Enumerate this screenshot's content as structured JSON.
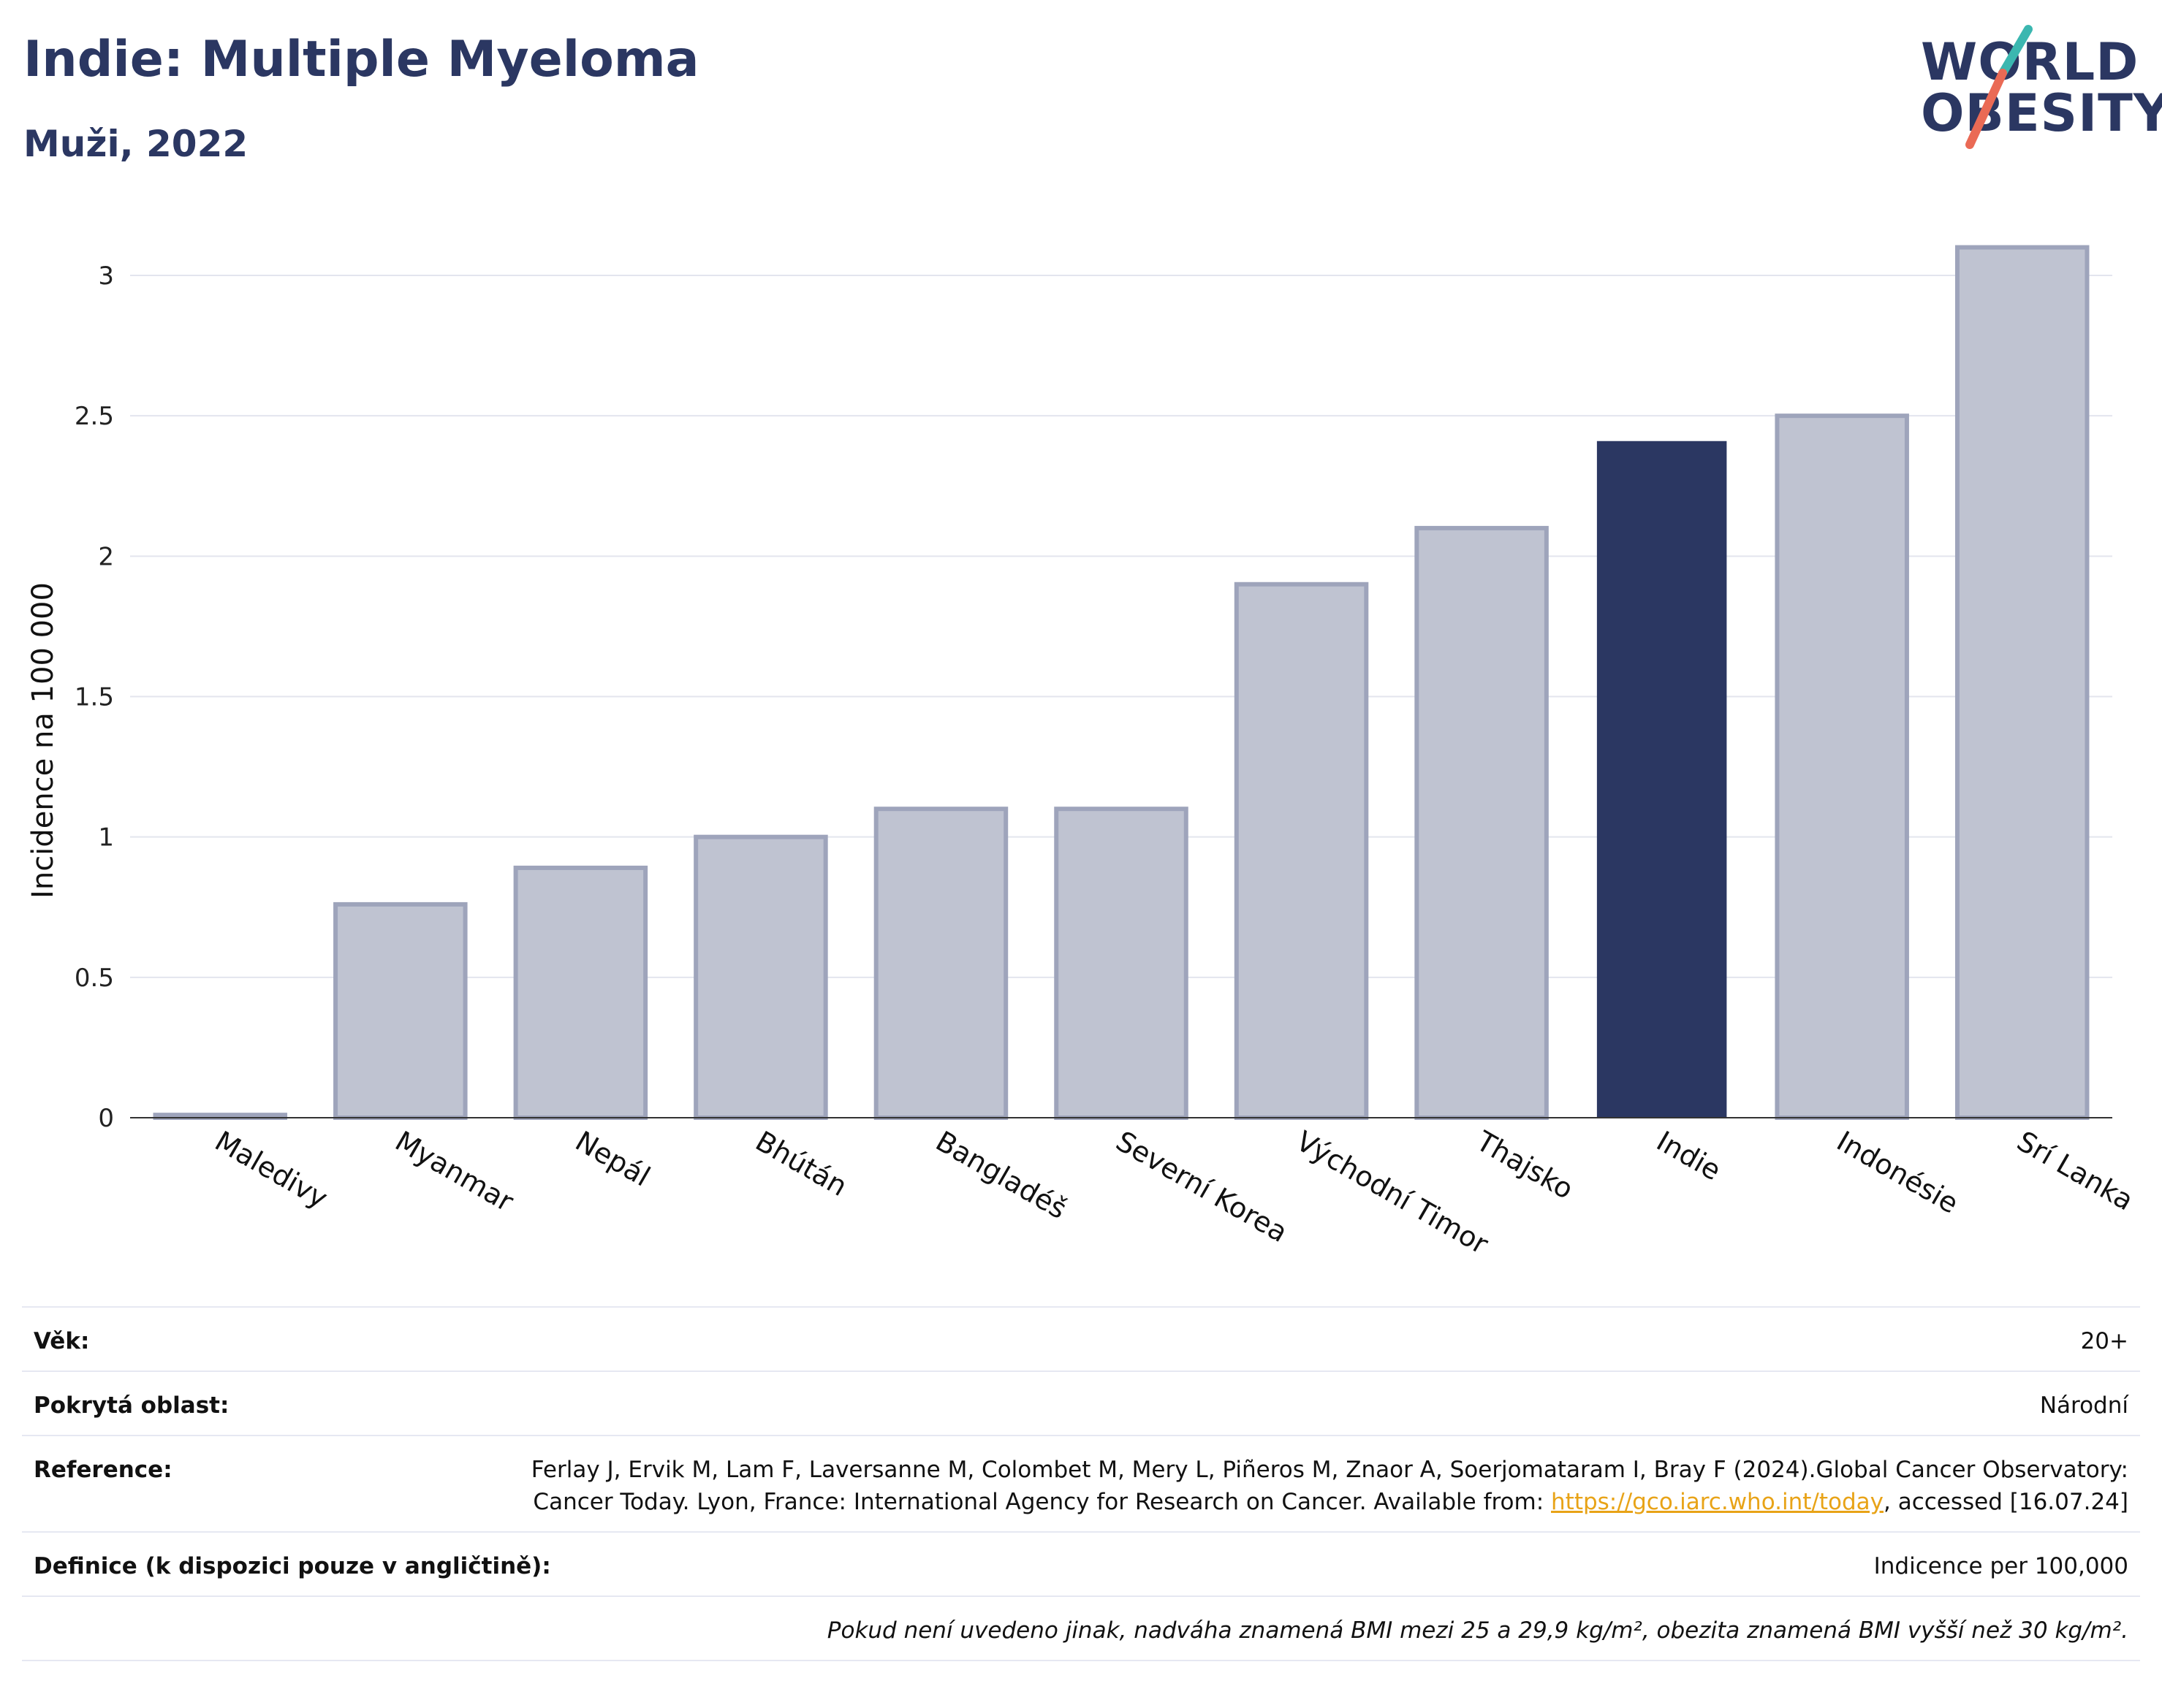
{
  "header": {
    "title": "Indie: Multiple Myeloma",
    "subtitle": "Muži, 2022"
  },
  "logo": {
    "line1": "WORLD",
    "line2": "OBESITY"
  },
  "colors": {
    "highlight": "#2b3762",
    "bar_fill": "#bfc3d1",
    "bar_stroke": "#9ea4bb",
    "grid": "#e3e5ee"
  },
  "chart_data": {
    "type": "bar",
    "title": "Indie: Multiple Myeloma",
    "subtitle": "Muži, 2022",
    "xlabel": "",
    "ylabel": "Incidence na 100 000",
    "ylim": [
      0,
      3.1
    ],
    "yticks": [
      0,
      0.5,
      1,
      1.5,
      2,
      2.5,
      3
    ],
    "ytick_labels": [
      "0",
      "0.5",
      "1",
      "1.5",
      "2",
      "2.5",
      "3"
    ],
    "categories": [
      "Maledivy",
      "Myanmar",
      "Nepál",
      "Bhútán",
      "Bangladéš",
      "Severní Korea",
      "Východní Timor",
      "Thajsko",
      "Indie",
      "Indonésie",
      "Srí Lanka"
    ],
    "values": [
      0.01,
      0.76,
      0.89,
      1.0,
      1.1,
      1.1,
      1.9,
      2.1,
      2.41,
      2.5,
      3.1
    ],
    "highlight": "Indie",
    "grid": true,
    "legend": "none"
  },
  "meta": {
    "age_label": "Věk:",
    "age_value": "20+",
    "area_label": "Pokrytá oblast:",
    "area_value": "Národní",
    "reference_label": "Reference:",
    "reference_text": "Ferlay J, Ervik M, Lam F, Laversanne M, Colombet M, Mery L, Piñeros M, Znaor A, Soerjomataram I, Bray F (2024).Global Cancer Observatory: Cancer Today. Lyon, France: International Agency for Research on Cancer. Available from: ",
    "reference_link": "https://gco.iarc.who.int/today",
    "reference_suffix": ", accessed [16.07.24]",
    "definition_label": "Definice (k dispozici pouze v angličtině):",
    "definition_value": "Indicence per 100,000",
    "note": "Pokud není uvedeno jinak, nadváha znamená BMI mezi 25 a 29,9 kg/m², obezita znamená BMI vyšší než 30 kg/m²."
  }
}
